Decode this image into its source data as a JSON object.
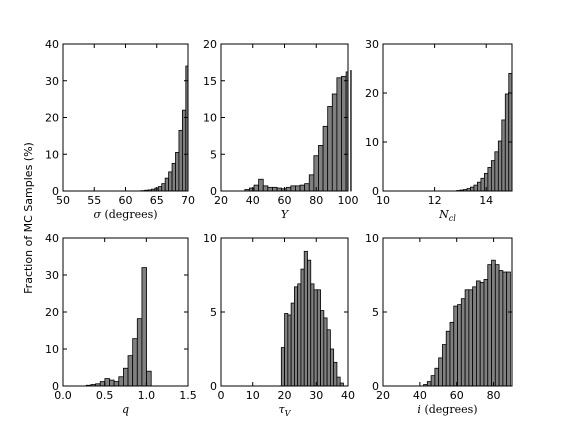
{
  "figure": {
    "ylabel": "Fraction of MC Samples (%)"
  },
  "chart_data": [
    {
      "type": "bar",
      "xlabel": "σ (degrees)",
      "xlabel_style": "italic-symbol",
      "xlim": [
        50,
        70
      ],
      "ylim": [
        0,
        40
      ],
      "xticks": [
        "50",
        "55",
        "60",
        "65",
        "70"
      ],
      "yticks": [
        "0",
        "10",
        "20",
        "30",
        "40"
      ],
      "bin_start": 62.5,
      "bin_width": 0.55,
      "values": [
        0.1,
        0.2,
        0.3,
        0.5,
        0.8,
        1.2,
        2.0,
        3.5,
        5.2,
        7.5,
        10.5,
        16.5,
        22.0,
        34.0
      ]
    },
    {
      "type": "bar",
      "xlabel": "Y",
      "xlabel_style": "italic",
      "xlim": [
        20,
        100
      ],
      "ylim": [
        0,
        20
      ],
      "xticks": [
        "20",
        "40",
        "60",
        "80",
        "100"
      ],
      "yticks": [
        "0",
        "5",
        "10",
        "15",
        "20"
      ],
      "bin_start": 35,
      "bin_width": 2.9,
      "values": [
        0.2,
        0.4,
        0.8,
        1.6,
        0.7,
        0.5,
        0.5,
        0.4,
        0.3,
        0.5,
        0.7,
        0.7,
        0.8,
        1.0,
        2.2,
        4.8,
        6.2,
        8.8,
        11.5,
        13.2,
        15.4,
        15.6,
        16.2,
        16.4
      ]
    },
    {
      "type": "bar",
      "xlabel": "N_cl",
      "xlabel_style": "italic-subscript",
      "xlim": [
        10,
        15
      ],
      "ylim": [
        0,
        30
      ],
      "xticks": [
        "10",
        "12",
        "14"
      ],
      "yticks": [
        "0",
        "10",
        "20",
        "30"
      ],
      "bin_start": 12.85,
      "bin_width": 0.135,
      "values": [
        0.1,
        0.2,
        0.3,
        0.5,
        0.8,
        1.2,
        1.8,
        2.6,
        3.6,
        4.8,
        6.2,
        8.0,
        10.2,
        14.5,
        19.8,
        24.0
      ]
    },
    {
      "type": "bar",
      "xlabel": "q",
      "xlabel_style": "italic",
      "xlim": [
        0.0,
        1.5
      ],
      "ylim": [
        0,
        40
      ],
      "xticks": [
        "0.0",
        "0.5",
        "1.0",
        "1.5"
      ],
      "yticks": [
        "0",
        "10",
        "20",
        "30",
        "40"
      ],
      "bin_start": 0.28,
      "bin_width": 0.0556,
      "values": [
        0.2,
        0.4,
        0.6,
        1.2,
        2.0,
        1.6,
        1.2,
        2.5,
        4.8,
        8.2,
        12.8,
        18.2,
        32.0,
        4.0
      ]
    },
    {
      "type": "bar",
      "xlabel": "τ_V",
      "xlabel_style": "italic-subscript",
      "xlim": [
        0,
        40
      ],
      "ylim": [
        0,
        10
      ],
      "xticks": [
        "0",
        "10",
        "20",
        "30",
        "40"
      ],
      "yticks": [
        "0",
        "5",
        "10"
      ],
      "bin_start": 19.0,
      "bin_width": 1.03,
      "values": [
        2.6,
        4.9,
        4.8,
        5.6,
        6.7,
        6.9,
        7.9,
        9.1,
        8.5,
        6.9,
        6.5,
        6.5,
        5.1,
        4.6,
        3.8,
        2.5,
        1.6,
        0.6,
        0.2
      ]
    },
    {
      "type": "bar",
      "xlabel": "i (degrees)",
      "xlabel_style": "italic-symbol",
      "xlim": [
        20,
        90
      ],
      "ylim": [
        0,
        10
      ],
      "xticks": [
        "20",
        "40",
        "60",
        "80"
      ],
      "yticks": [
        "0",
        "5",
        "10"
      ],
      "bin_start": 42,
      "bin_width": 2.05,
      "values": [
        0.1,
        0.3,
        0.7,
        1.2,
        1.9,
        2.8,
        3.7,
        4.3,
        5.4,
        5.5,
        5.9,
        6.5,
        6.5,
        6.7,
        7.1,
        7.0,
        7.2,
        8.2,
        8.5,
        8.2,
        7.8,
        7.7,
        7.7
      ]
    }
  ]
}
